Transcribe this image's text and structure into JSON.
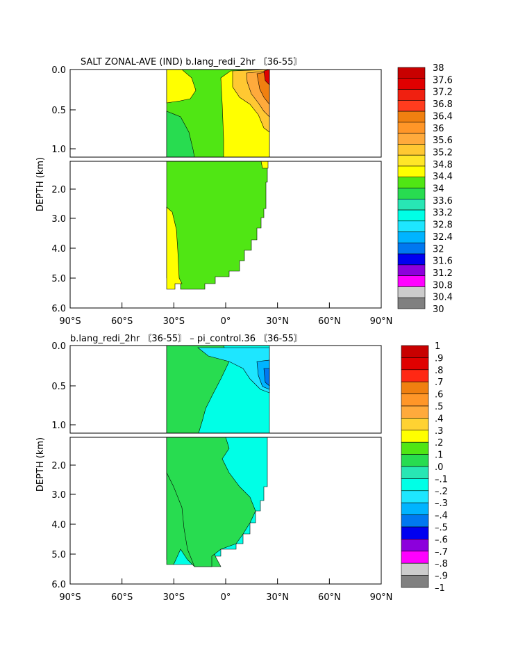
{
  "chart_data": [
    {
      "type": "heatmap",
      "title": "SALT ZONAL-AVE (IND) b.lang_redi_2hr 〘36-55〙",
      "ylabel": "DEPTH (km)",
      "x_ticks": [
        "90°S",
        "60°S",
        "30°S",
        "0°",
        "30°N",
        "60°N",
        "90°N"
      ],
      "y_ticks_upper": [
        "0.0",
        "0.5",
        "1.0"
      ],
      "y_ticks_lower": [
        "2.0",
        "3.0",
        "4.0",
        "5.0",
        "6.0"
      ],
      "xlim": [
        -90,
        90
      ],
      "ylim_km": [
        0,
        6
      ],
      "colorbar": {
        "labels": [
          "38",
          "37.6",
          "37.2",
          "36.8",
          "36.4",
          "36",
          "35.6",
          "35.2",
          "34.8",
          "34.4",
          "34",
          "33.6",
          "33.2",
          "32.8",
          "32.4",
          "32",
          "31.6",
          "31.2",
          "30.8",
          "30.4",
          "30"
        ],
        "colors": [
          "#c80000",
          "#e00000",
          "#f02010",
          "#ff3c1e",
          "#f08010",
          "#ff9628",
          "#ffaa3c",
          "#ffc832",
          "#ffe628",
          "#ffff00",
          "#50e614",
          "#28dc50",
          "#28e6b4",
          "#00ffe6",
          "#1ee6ff",
          "#00b4ff",
          "#0078f0",
          "#0000f0",
          "#8c00dc",
          "#ff00ff",
          "#cccccc",
          "#808080"
        ]
      },
      "regions": {
        "main_field": "#50e614",
        "warm_north": "#ffff00",
        "south_deep_warm": "#ffff00",
        "south_upper_light": "#28dc50",
        "surface_gold": "#ffc832",
        "surface_orange": "#ffaa3c",
        "surface_deep_orange": "#f08010",
        "surface_red": "#e00000"
      }
    },
    {
      "type": "heatmap",
      "title": "b.lang_redi_2hr 〘36-55〙 – pi_control.36 〘36-55〙",
      "ylabel": "DEPTH (km)",
      "x_ticks": [
        "90°S",
        "60°S",
        "30°S",
        "0°",
        "30°N",
        "60°N",
        "90°N"
      ],
      "y_ticks_upper": [
        "0.0",
        "0.5",
        "1.0"
      ],
      "y_ticks_lower": [
        "2.0",
        "3.0",
        "4.0",
        "5.0",
        "6.0"
      ],
      "xlim": [
        -90,
        90
      ],
      "ylim_km": [
        0,
        6
      ],
      "colorbar": {
        "labels": [
          "1",
          ".9",
          ".8",
          ".7",
          ".6",
          ".5",
          ".4",
          ".3",
          ".2",
          ".1",
          ".0",
          "–.1",
          "–.2",
          "–.3",
          "–.4",
          "–.5",
          "–.6",
          "–.7",
          "–.8",
          "–.9",
          "–1"
        ],
        "colors": [
          "#c80000",
          "#e00000",
          "#ff2814",
          "#f08010",
          "#ff9628",
          "#ffaa3c",
          "#ffd232",
          "#ffff00",
          "#50e614",
          "#28dc50",
          "#28e6b4",
          "#00ffe6",
          "#1ee6ff",
          "#00b4ff",
          "#0078f0",
          "#0000f0",
          "#8c00dc",
          "#ff00ff",
          "#cccccc",
          "#808080"
        ]
      },
      "regions": {
        "main_field": "#00ffe6",
        "positive_band": "#28dc50",
        "deep_positive": "#28dc50",
        "surface_blue": "#1ee6ff",
        "surface_mid_blue": "#00b4ff",
        "surface_dark_blue": "#0078f0"
      }
    }
  ]
}
